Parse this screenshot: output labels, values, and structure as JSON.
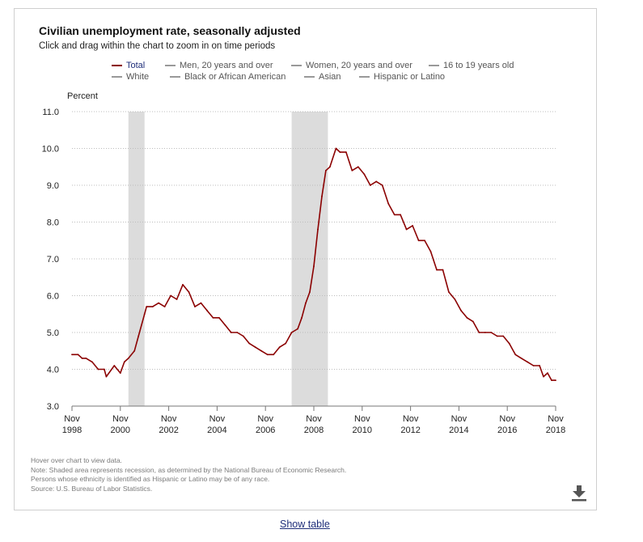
{
  "header": {
    "title": "Civilian unemployment rate, seasonally adjusted",
    "subtitle": "Click and drag within the chart to zoom in on time periods"
  },
  "legend": {
    "row1": [
      {
        "label": "Total",
        "color": "#8b0000",
        "active": true
      },
      {
        "label": "Men, 20 years and over",
        "color": "#999999",
        "active": false
      },
      {
        "label": "Women, 20 years and over",
        "color": "#999999",
        "active": false
      },
      {
        "label": "16 to 19 years old",
        "color": "#999999",
        "active": false
      }
    ],
    "row2": [
      {
        "label": "White",
        "color": "#999999",
        "active": false
      },
      {
        "label": "Black or African American",
        "color": "#999999",
        "active": false
      },
      {
        "label": "Asian",
        "color": "#999999",
        "active": false
      },
      {
        "label": "Hispanic or Latino",
        "color": "#999999",
        "active": false
      }
    ]
  },
  "chart_data": {
    "type": "line",
    "ylabel": "Percent",
    "ylim": [
      3.0,
      11.0
    ],
    "yticks": [
      "3.0",
      "4.0",
      "5.0",
      "6.0",
      "7.0",
      "8.0",
      "9.0",
      "10.0",
      "11.0"
    ],
    "xlim": [
      "1998-11",
      "2018-11"
    ],
    "xticks": [
      {
        "month": "Nov",
        "year": "1998"
      },
      {
        "month": "Nov",
        "year": "2000"
      },
      {
        "month": "Nov",
        "year": "2002"
      },
      {
        "month": "Nov",
        "year": "2004"
      },
      {
        "month": "Nov",
        "year": "2006"
      },
      {
        "month": "Nov",
        "year": "2008"
      },
      {
        "month": "Nov",
        "year": "2010"
      },
      {
        "month": "Nov",
        "year": "2012"
      },
      {
        "month": "Nov",
        "year": "2014"
      },
      {
        "month": "Nov",
        "year": "2016"
      },
      {
        "month": "Nov",
        "year": "2018"
      }
    ],
    "grid": "horizontal dotted",
    "recessions": [
      {
        "start": "2001-03",
        "end": "2001-11"
      },
      {
        "start": "2007-12",
        "end": "2009-06"
      }
    ],
    "series": [
      {
        "name": "Total",
        "color": "#8b0000",
        "x": [
          "1998-11",
          "1999-02",
          "1999-04",
          "1999-06",
          "1999-09",
          "1999-12",
          "2000-03",
          "2000-04",
          "2000-08",
          "2000-11",
          "2001-01",
          "2001-03",
          "2001-06",
          "2001-08",
          "2001-11",
          "2001-12",
          "2002-03",
          "2002-06",
          "2002-09",
          "2002-12",
          "2003-03",
          "2003-06",
          "2003-09",
          "2003-12",
          "2004-03",
          "2004-06",
          "2004-09",
          "2004-12",
          "2005-03",
          "2005-06",
          "2005-09",
          "2005-12",
          "2006-03",
          "2006-06",
          "2006-09",
          "2006-12",
          "2007-03",
          "2007-06",
          "2007-09",
          "2007-12",
          "2008-03",
          "2008-05",
          "2008-07",
          "2008-09",
          "2008-11",
          "2009-01",
          "2009-03",
          "2009-05",
          "2009-07",
          "2009-10",
          "2009-12",
          "2010-03",
          "2010-06",
          "2010-09",
          "2010-12",
          "2011-03",
          "2011-06",
          "2011-09",
          "2011-12",
          "2012-03",
          "2012-06",
          "2012-09",
          "2012-12",
          "2013-03",
          "2013-06",
          "2013-09",
          "2013-12",
          "2014-03",
          "2014-06",
          "2014-09",
          "2014-12",
          "2015-03",
          "2015-06",
          "2015-09",
          "2015-12",
          "2016-03",
          "2016-06",
          "2016-09",
          "2016-12",
          "2017-03",
          "2017-06",
          "2017-09",
          "2017-12",
          "2018-03",
          "2018-05",
          "2018-07",
          "2018-09",
          "2018-11"
        ],
        "values": [
          4.4,
          4.4,
          4.3,
          4.3,
          4.2,
          4.0,
          4.0,
          3.8,
          4.1,
          3.9,
          4.2,
          4.3,
          4.5,
          4.9,
          5.5,
          5.7,
          5.7,
          5.8,
          5.7,
          6.0,
          5.9,
          6.3,
          6.1,
          5.7,
          5.8,
          5.6,
          5.4,
          5.4,
          5.2,
          5.0,
          5.0,
          4.9,
          4.7,
          4.6,
          4.5,
          4.4,
          4.4,
          4.6,
          4.7,
          5.0,
          5.1,
          5.4,
          5.8,
          6.1,
          6.8,
          7.8,
          8.7,
          9.4,
          9.5,
          10.0,
          9.9,
          9.9,
          9.4,
          9.5,
          9.3,
          9.0,
          9.1,
          9.0,
          8.5,
          8.2,
          8.2,
          7.8,
          7.9,
          7.5,
          7.5,
          7.2,
          6.7,
          6.7,
          6.1,
          5.9,
          5.6,
          5.4,
          5.3,
          5.0,
          5.0,
          5.0,
          4.9,
          4.9,
          4.7,
          4.4,
          4.3,
          4.2,
          4.1,
          4.1,
          3.8,
          3.9,
          3.7,
          3.7
        ]
      }
    ]
  },
  "footnotes": [
    "Hover over chart to view data.",
    "Note: Shaded area represents recession, as determined by the National Bureau of Economic Research.",
    "Persons whose ethnicity is identified as Hispanic or Latino may be of any race.",
    "Source: U.S. Bureau of Labor Statistics."
  ],
  "download_icon": "download-icon",
  "show_table_label": "Show table"
}
